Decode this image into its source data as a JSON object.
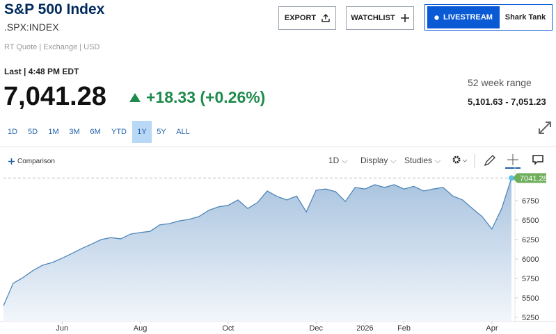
{
  "header": {
    "title": "S&P 500 Index",
    "symbol": ".SPX:INDEX",
    "quote_info": "RT Quote | Exchange | USD"
  },
  "buttons": {
    "export": "EXPORT",
    "watchlist": "WATCHLIST",
    "livestream": "LIVESTREAM",
    "show": "Shark Tank"
  },
  "quote": {
    "last": "Last | 4:48 PM EDT",
    "price": "7,041.28",
    "change": "+18.33 (+0.26%)",
    "range_label": "52 week range",
    "range": "5,101.63 - 7,051.23"
  },
  "ranges": [
    "1D",
    "5D",
    "1M",
    "3M",
    "6M",
    "YTD",
    "1Y",
    "5Y",
    "ALL"
  ],
  "active_range": "1Y",
  "toolbar": {
    "comparison": "Comparison",
    "interval": "1D",
    "display": "Display",
    "studies": "Studies"
  },
  "chart_data": {
    "type": "area",
    "color": "#4f86b8",
    "categories": [
      null,
      null,
      null,
      null,
      null,
      null,
      "Jun",
      null,
      null,
      null,
      null,
      null,
      null,
      null,
      "Aug",
      null,
      null,
      null,
      null,
      null,
      null,
      null,
      null,
      "Oct",
      null,
      null,
      null,
      null,
      null,
      null,
      null,
      null,
      "Dec",
      null,
      null,
      null,
      null,
      "2026",
      null,
      null,
      null,
      "Feb",
      null,
      null,
      null,
      null,
      null,
      null,
      null,
      null,
      "Apr",
      null,
      null
    ],
    "values": [
      5400,
      5688,
      5760,
      5850,
      5920,
      5955,
      6010,
      6070,
      6135,
      6190,
      6250,
      6275,
      6260,
      6320,
      6340,
      6355,
      6440,
      6455,
      6490,
      6510,
      6545,
      6625,
      6670,
      6690,
      6760,
      6650,
      6725,
      6875,
      6805,
      6760,
      6810,
      6605,
      6885,
      6900,
      6865,
      6740,
      6920,
      6900,
      6955,
      6920,
      6955,
      6900,
      6935,
      6875,
      6900,
      6920,
      6810,
      6760,
      6650,
      6545,
      6385,
      6650,
      7041.28
    ],
    "ylim": [
      5196,
      7116
    ],
    "yticks": [
      5250,
      5500,
      5750,
      6000,
      6250,
      6500,
      6750
    ],
    "grid": false
  }
}
